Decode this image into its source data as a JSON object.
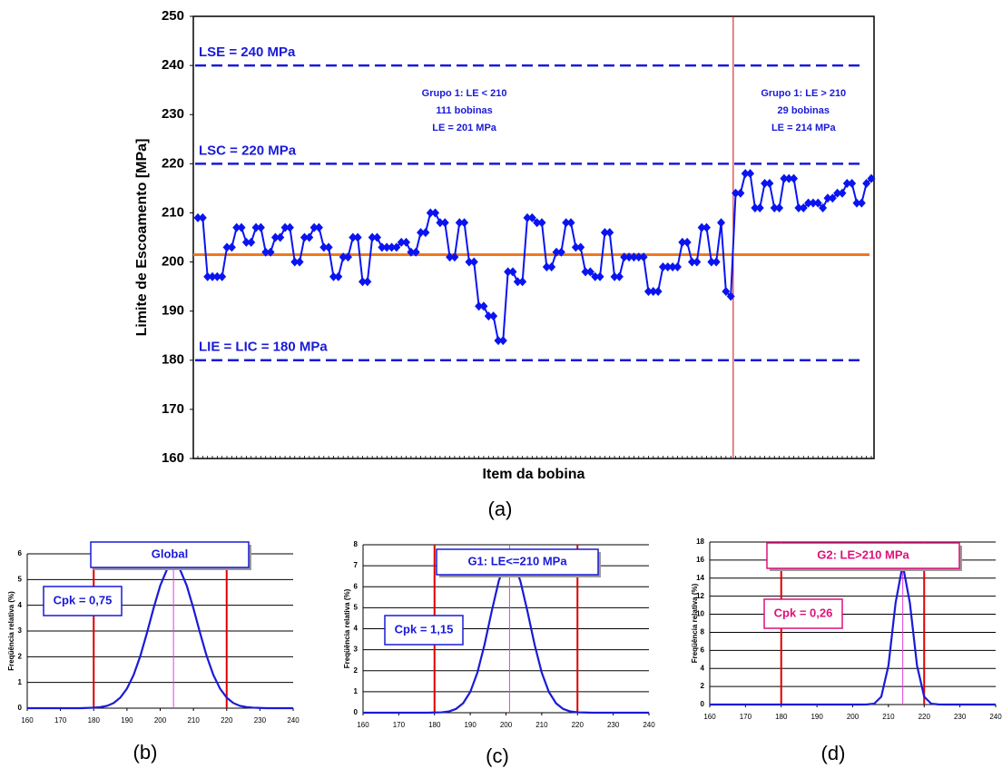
{
  "chart_data": [
    {
      "type": "line",
      "y_label": "Limite de Escoamento [MPa]",
      "x_label": "Item da bobina",
      "caption": "(a)",
      "ylim": [
        160,
        250
      ],
      "yticks": [
        160,
        170,
        180,
        190,
        200,
        210,
        220,
        230,
        240,
        250
      ],
      "color": "#0a14f0",
      "markers": true,
      "values": [
        209,
        209,
        197,
        197,
        197,
        197,
        203,
        203,
        207,
        207,
        204,
        204,
        207,
        207,
        202,
        202,
        205,
        205,
        207,
        207,
        200,
        200,
        205,
        205,
        207,
        207,
        203,
        203,
        197,
        197,
        201,
        201,
        205,
        205,
        196,
        196,
        205,
        205,
        203,
        203,
        203,
        203,
        204,
        204,
        202,
        202,
        206,
        206,
        210,
        210,
        208,
        208,
        201,
        201,
        208,
        208,
        200,
        200,
        191,
        191,
        189,
        189,
        184,
        184,
        198,
        198,
        196,
        196,
        209,
        209,
        208,
        208,
        199,
        199,
        202,
        202,
        208,
        208,
        203,
        203,
        198,
        198,
        197,
        197,
        206,
        206,
        197,
        197,
        201,
        201,
        201,
        201,
        201,
        194,
        194,
        194,
        199,
        199,
        199,
        199,
        204,
        204,
        200,
        200,
        207,
        207,
        200,
        200,
        208,
        194,
        193,
        214,
        214,
        218,
        218,
        211,
        211,
        216,
        216,
        211,
        211,
        217,
        217,
        217,
        211,
        211,
        212,
        212,
        212,
        211,
        213,
        213,
        214,
        214,
        216,
        216,
        212,
        212,
        216,
        217
      ],
      "reference_lines": [
        {
          "label": "LSE = 240 MPa",
          "value": 240
        },
        {
          "label": "LSC = 220 MPa",
          "value": 220
        },
        {
          "label": "LIE = LIC = 180 MPa",
          "value": 180
        }
      ],
      "reference_color": "#1a1ad8",
      "mean_line": 201.5,
      "mean_color": "#f07820",
      "split_color": "#d01010",
      "groups": [
        {
          "text": [
            "Grupo 1: LE < 210",
            "111 bobinas",
            "LE = 201 MPa"
          ],
          "count": 111
        },
        {
          "text": [
            "Grupo 1: LE > 210",
            "29 bobinas",
            "LE = 214 MPa"
          ],
          "count": 29
        }
      ]
    },
    {
      "type": "line",
      "title": "Global",
      "annotation": "Cpk = 0,75",
      "caption": "(b)",
      "y_label": "Freqüência relativa (%)",
      "xlim": [
        160,
        240
      ],
      "xticks": [
        160,
        170,
        180,
        190,
        200,
        210,
        220,
        230,
        240
      ],
      "ylim": [
        0,
        6
      ],
      "yticks": [
        0,
        1,
        2,
        3,
        4,
        5,
        6
      ],
      "grid": true,
      "color": "#1a1ad8",
      "title_color": "#1a1ad8",
      "spec_lines": [
        180,
        220
      ],
      "spec_color": "#e00000",
      "mean_line": 204,
      "mean_color": "#e040e0",
      "x": [
        160,
        162,
        164,
        166,
        168,
        170,
        172,
        174,
        176,
        178,
        180,
        182,
        184,
        186,
        188,
        190,
        192,
        194,
        196,
        198,
        200,
        202,
        204,
        206,
        208,
        210,
        212,
        214,
        216,
        218,
        220,
        222,
        224,
        226,
        228,
        230,
        232,
        234,
        236,
        238,
        240
      ],
      "values": [
        0,
        0,
        0,
        0,
        0,
        0,
        0,
        0,
        0,
        0.01,
        0.02,
        0.04,
        0.09,
        0.2,
        0.41,
        0.76,
        1.29,
        2.02,
        2.92,
        3.88,
        4.76,
        5.38,
        5.6,
        5.38,
        4.76,
        3.88,
        2.92,
        2.02,
        1.29,
        0.76,
        0.41,
        0.2,
        0.09,
        0.04,
        0.02,
        0.01,
        0,
        0,
        0,
        0,
        0
      ]
    },
    {
      "type": "line",
      "title": "G1: LE<=210 MPa",
      "annotation": "Cpk = 1,15",
      "caption": "(c)",
      "y_label": "Freqüência relativa (%)",
      "xlim": [
        160,
        240
      ],
      "xticks": [
        160,
        170,
        180,
        190,
        200,
        210,
        220,
        230,
        240
      ],
      "ylim": [
        0,
        8
      ],
      "yticks": [
        0,
        1,
        2,
        3,
        4,
        5,
        6,
        7,
        8
      ],
      "grid": true,
      "color": "#1a1ad8",
      "title_color": "#1a1ad8",
      "spec_lines": [
        180,
        220
      ],
      "spec_color": "#e00000",
      "mean_line": 201,
      "mean_color": "#e040e0",
      "x": [
        160,
        162,
        164,
        166,
        168,
        170,
        172,
        174,
        176,
        178,
        180,
        182,
        184,
        186,
        188,
        190,
        192,
        194,
        196,
        198,
        200,
        202,
        204,
        206,
        208,
        210,
        212,
        214,
        216,
        218,
        220,
        222,
        224,
        226,
        228,
        230,
        232,
        234,
        236,
        238,
        240
      ],
      "values": [
        0,
        0,
        0,
        0,
        0,
        0,
        0,
        0,
        0,
        0,
        0.01,
        0.02,
        0.06,
        0.18,
        0.45,
        0.99,
        1.91,
        3.25,
        4.83,
        6.29,
        7.18,
        7.18,
        6.29,
        4.83,
        3.25,
        1.91,
        0.99,
        0.45,
        0.18,
        0.06,
        0.02,
        0.01,
        0,
        0,
        0,
        0,
        0,
        0,
        0,
        0,
        0
      ]
    },
    {
      "type": "line",
      "title": "G2: LE>210 MPa",
      "annotation": "Cpk = 0,26",
      "caption": "(d)",
      "y_label": "Freqüência relativa (%)",
      "xlim": [
        160,
        240
      ],
      "xticks": [
        160,
        170,
        180,
        190,
        200,
        210,
        220,
        230,
        240
      ],
      "ylim": [
        0,
        18
      ],
      "yticks": [
        0,
        2,
        4,
        6,
        8,
        10,
        12,
        14,
        16,
        18
      ],
      "grid": true,
      "color": "#1a1ad8",
      "title_color": "#e0107a",
      "spec_lines": [
        180,
        220
      ],
      "spec_color": "#e00000",
      "mean_line": 214,
      "mean_color": "#e040e0",
      "x": [
        160,
        162,
        164,
        166,
        168,
        170,
        172,
        174,
        176,
        178,
        180,
        182,
        184,
        186,
        188,
        190,
        192,
        194,
        196,
        198,
        200,
        202,
        204,
        206,
        208,
        210,
        212,
        214,
        216,
        218,
        220,
        222,
        224,
        226,
        228,
        230,
        232,
        234,
        236,
        238,
        240
      ],
      "values": [
        0,
        0,
        0,
        0,
        0,
        0,
        0,
        0,
        0,
        0,
        0,
        0,
        0,
        0,
        0,
        0,
        0,
        0,
        0,
        0,
        0,
        0,
        0.01,
        0.09,
        0.87,
        4.31,
        11.26,
        15.5,
        11.26,
        4.31,
        0.87,
        0.09,
        0.01,
        0,
        0,
        0,
        0,
        0,
        0,
        0,
        0
      ]
    }
  ]
}
